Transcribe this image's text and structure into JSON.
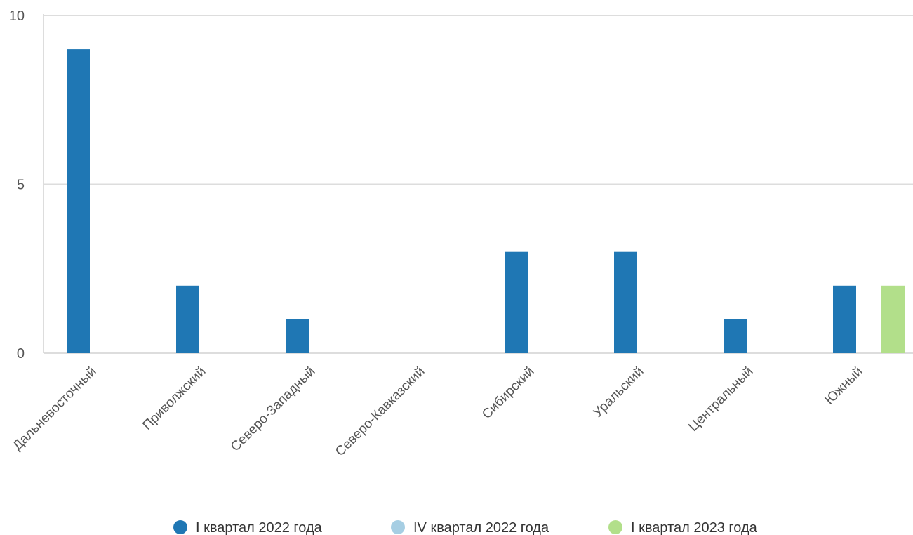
{
  "chart_data": {
    "type": "bar",
    "categories": [
      "Дальневосточный",
      "Приволжский",
      "Северо-Западный",
      "Северо-Кавказский",
      "Сибирский",
      "Уральский",
      "Центральный",
      "Южный"
    ],
    "series": [
      {
        "name": "I квартал 2022 года",
        "color": "#1f77b4",
        "values": [
          9,
          2,
          1,
          0,
          3,
          3,
          1,
          2
        ]
      },
      {
        "name": "IV квартал 2022 года",
        "color": "#a6cee3",
        "values": [
          0,
          0,
          0,
          0,
          0,
          0,
          0,
          0
        ]
      },
      {
        "name": "I квартал 2023 года",
        "color": "#b2df8a",
        "values": [
          0,
          0,
          0,
          0,
          0,
          0,
          0,
          2
        ]
      }
    ],
    "ylim": [
      0,
      10
    ],
    "yticks": [
      0,
      5,
      10
    ],
    "grid": true,
    "legend_position": "bottom"
  }
}
